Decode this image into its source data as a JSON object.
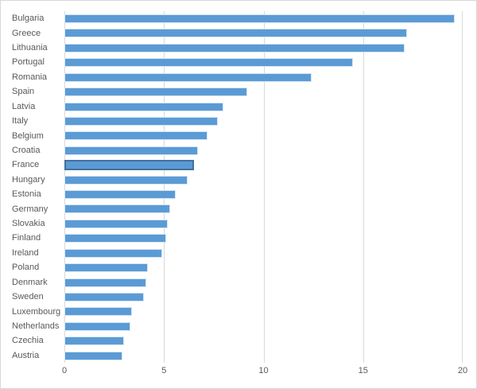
{
  "chart": {
    "colors": {
      "bar_fill": "#5b9bd5",
      "bar_outline": "#d5e5f4",
      "highlight_border": "#41719c",
      "gridline": "#d9d9d9",
      "axis_text": "#595959",
      "chart_border": "#d7d7d7",
      "background": "#ffffff"
    }
  },
  "chart_data": {
    "type": "bar",
    "orientation": "horizontal",
    "title": "",
    "xlabel": "",
    "ylabel": "",
    "categories": [
      "Bulgaria",
      "Greece",
      "Lithuania",
      "Portugal",
      "Romania",
      "Spain",
      "Latvia",
      "Italy",
      "Belgium",
      "Croatia",
      "France",
      "Hungary",
      "Estonia",
      "Germany",
      "Slovakia",
      "Finland",
      "Ireland",
      "Poland",
      "Denmark",
      "Sweden",
      "Luxembourg",
      "Netherlands",
      "Czechia",
      "Austria"
    ],
    "values": [
      19.6,
      17.2,
      17.1,
      14.5,
      12.4,
      9.2,
      8.0,
      7.7,
      7.2,
      6.7,
      6.5,
      6.2,
      5.6,
      5.3,
      5.2,
      5.1,
      4.9,
      4.2,
      4.1,
      4.0,
      3.4,
      3.3,
      3.0,
      2.9
    ],
    "highlighted_category": "France",
    "xlim": [
      0,
      20
    ],
    "x_tick_values": [
      0,
      5,
      10,
      15,
      20
    ],
    "x_tick_labels": [
      "0",
      "5",
      "10",
      "15",
      "20"
    ],
    "grid": true,
    "legend": "none"
  }
}
